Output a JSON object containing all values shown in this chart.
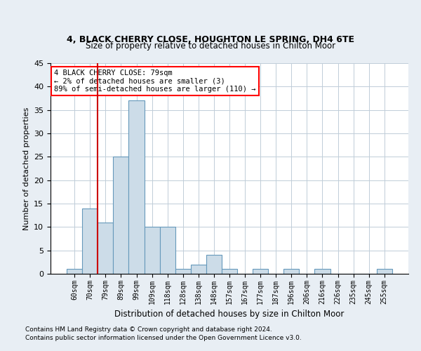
{
  "title1": "4, BLACK CHERRY CLOSE, HOUGHTON LE SPRING, DH4 6TE",
  "title2": "Size of property relative to detached houses in Chilton Moor",
  "xlabel": "Distribution of detached houses by size in Chilton Moor",
  "ylabel": "Number of detached properties",
  "categories": [
    "60sqm",
    "70sqm",
    "79sqm",
    "89sqm",
    "99sqm",
    "109sqm",
    "118sqm",
    "128sqm",
    "138sqm",
    "148sqm",
    "157sqm",
    "167sqm",
    "177sqm",
    "187sqm",
    "196sqm",
    "206sqm",
    "216sqm",
    "226sqm",
    "235sqm",
    "245sqm",
    "255sqm"
  ],
  "values": [
    1,
    14,
    11,
    25,
    37,
    10,
    10,
    1,
    2,
    4,
    1,
    0,
    1,
    0,
    1,
    0,
    1,
    0,
    0,
    0,
    1
  ],
  "bar_color": "#ccdce8",
  "bar_edge_color": "#6699bb",
  "vline_index": 2,
  "annotation_text": "4 BLACK CHERRY CLOSE: 79sqm\n← 2% of detached houses are smaller (3)\n89% of semi-detached houses are larger (110) →",
  "vline_color": "#cc0000",
  "ylim": [
    0,
    45
  ],
  "yticks": [
    0,
    5,
    10,
    15,
    20,
    25,
    30,
    35,
    40,
    45
  ],
  "footnote1": "Contains HM Land Registry data © Crown copyright and database right 2024.",
  "footnote2": "Contains public sector information licensed under the Open Government Licence v3.0.",
  "background_color": "#e8eef4",
  "plot_background_color": "#ffffff",
  "grid_color": "#c0cdd8"
}
